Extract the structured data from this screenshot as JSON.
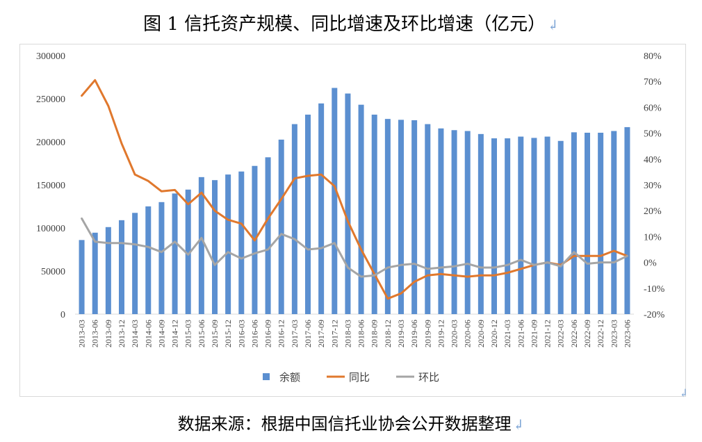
{
  "title": "图 1  信托资产规模、同比增速及环比增速（亿元）",
  "source": "数据来源：根据中国信托业协会公开数据整理",
  "paragraph_mark": "↲",
  "chart_data": {
    "type": "bar+line",
    "categories": [
      "2013-03",
      "2013-06",
      "2013-09",
      "2013-12",
      "2014-03",
      "2014-06",
      "2014-09",
      "2014-12",
      "2015-03",
      "2015-06",
      "2015-09",
      "2015-12",
      "2016-03",
      "2016-06",
      "2016-09",
      "2016-12",
      "2017-03",
      "2017-06",
      "2017-09",
      "2017-12",
      "2018-03",
      "2018-06",
      "2018-09",
      "2018-12",
      "2019-03",
      "2019-06",
      "2019-09",
      "2019-12",
      "2020-03",
      "2020-06",
      "2020-09",
      "2020-12",
      "2021-03",
      "2021-06",
      "2021-09",
      "2021-12",
      "2022-03",
      "2022-06",
      "2022-09",
      "2022-12",
      "2023-03",
      "2023-06"
    ],
    "y_left": {
      "ylim": [
        0,
        300000
      ],
      "ticks": [
        "0",
        "50000",
        "100000",
        "150000",
        "200000",
        "250000",
        "300000"
      ]
    },
    "y_right": {
      "ylim": [
        -20,
        80
      ],
      "ticks": [
        "-20%",
        "-10%",
        "0%",
        "10%",
        "20%",
        "30%",
        "40%",
        "50%",
        "60%",
        "70%",
        "80%"
      ]
    },
    "series": [
      {
        "name": "余额",
        "type": "bar",
        "axis": "left",
        "color": "#5b8fd0",
        "values": [
          86000,
          94500,
          101000,
          109000,
          117500,
          125000,
          130000,
          140000,
          144500,
          159000,
          155500,
          162000,
          165500,
          172000,
          182000,
          202500,
          220500,
          231500,
          244500,
          262500,
          256000,
          243000,
          231500,
          226500,
          225500,
          225000,
          220500,
          215500,
          213500,
          212500,
          209000,
          204000,
          204000,
          206000,
          204500,
          206000,
          201000,
          211000,
          210500,
          210500,
          212500,
          217000
        ]
      },
      {
        "name": "同比",
        "type": "line",
        "axis": "right",
        "color": "#e0782d",
        "values": [
          64.5,
          70.5,
          60.5,
          46,
          34,
          31.5,
          27.5,
          28,
          22.5,
          27,
          20,
          16.5,
          15,
          8.5,
          17,
          24.5,
          32.5,
          33.5,
          34,
          29.5,
          16,
          5,
          -4.5,
          -14,
          -12,
          -7.5,
          -5,
          -4.5,
          -5,
          -5.5,
          -5,
          -5,
          -4,
          -2.5,
          -1,
          0,
          -1,
          2.5,
          2.5,
          2.5,
          4.5,
          2.5
        ]
      },
      {
        "name": "环比",
        "type": "line",
        "axis": "right",
        "color": "#a5a5a5",
        "values": [
          17,
          8,
          7.5,
          7.5,
          7,
          6,
          4,
          8,
          3,
          9.5,
          -1,
          4,
          1.5,
          3.5,
          5,
          11,
          9,
          5,
          5.5,
          7.5,
          -2,
          -5.5,
          -5,
          -2,
          -1,
          -0.5,
          -2.5,
          -2,
          -1.5,
          -0.5,
          -2,
          -2,
          -1,
          1,
          -1,
          0,
          -1.5,
          4,
          -0.5,
          0,
          0,
          2.5
        ]
      }
    ],
    "legend": "bottom"
  }
}
